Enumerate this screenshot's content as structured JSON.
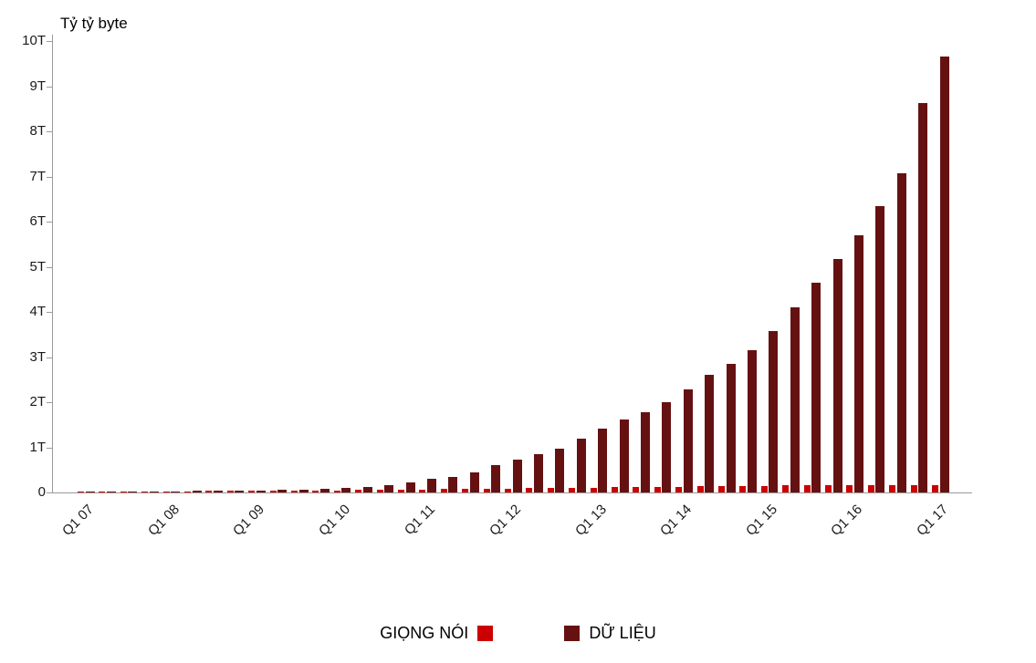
{
  "chart_data": {
    "type": "bar",
    "title": "Tỷ tỷ byte",
    "ylabel": "Tỷ tỷ byte",
    "ylim": [
      0,
      10
    ],
    "y_tick_labels": [
      "0",
      "1T",
      "2T",
      "3T",
      "4T",
      "5T",
      "6T",
      "7T",
      "8T",
      "9T",
      "10T"
    ],
    "tick_every": 4,
    "x_tick_labels": [
      "Q1 07",
      "Q1 08",
      "Q1 09",
      "Q1 10",
      "Q1 11",
      "Q1 12",
      "Q1 13",
      "Q1 14",
      "Q1 15",
      "Q1 16",
      "Q1 17"
    ],
    "categories": [
      "Q1 07",
      "Q2 07",
      "Q3 07",
      "Q4 07",
      "Q1 08",
      "Q2 08",
      "Q3 08",
      "Q4 08",
      "Q1 09",
      "Q2 09",
      "Q3 09",
      "Q4 09",
      "Q1 10",
      "Q2 10",
      "Q3 10",
      "Q4 10",
      "Q1 11",
      "Q2 11",
      "Q3 11",
      "Q4 11",
      "Q1 12",
      "Q2 12",
      "Q3 12",
      "Q4 12",
      "Q1 13",
      "Q2 13",
      "Q3 13",
      "Q4 13",
      "Q1 14",
      "Q2 14",
      "Q3 14",
      "Q4 14",
      "Q1 15",
      "Q2 15",
      "Q3 15",
      "Q4 15",
      "Q1 16",
      "Q2 16",
      "Q3 16",
      "Q4 16",
      "Q1 17"
    ],
    "series": [
      {
        "name": "GIỌNG NÓI",
        "color": "#cc0000",
        "values": [
          0.02,
          0.02,
          0.025,
          0.025,
          0.03,
          0.03,
          0.035,
          0.035,
          0.04,
          0.04,
          0.045,
          0.045,
          0.05,
          0.055,
          0.06,
          0.065,
          0.07,
          0.075,
          0.08,
          0.085,
          0.09,
          0.095,
          0.1,
          0.105,
          0.11,
          0.115,
          0.12,
          0.125,
          0.13,
          0.135,
          0.14,
          0.145,
          0.15,
          0.155,
          0.16,
          0.16,
          0.165,
          0.165,
          0.17,
          0.17,
          0.17
        ]
      },
      {
        "name": "DỮ LIỆU",
        "color": "#661111",
        "values": [
          0.01,
          0.015,
          0.02,
          0.025,
          0.03,
          0.035,
          0.04,
          0.045,
          0.05,
          0.055,
          0.065,
          0.08,
          0.1,
          0.13,
          0.17,
          0.22,
          0.3,
          0.35,
          0.45,
          0.6,
          0.72,
          0.85,
          0.97,
          1.2,
          1.42,
          1.62,
          1.78,
          2.0,
          2.28,
          2.6,
          2.85,
          3.15,
          3.58,
          4.1,
          4.65,
          5.18,
          5.7,
          6.35,
          7.07,
          8.63,
          9.65
        ]
      }
    ],
    "grid": false,
    "legend_position": "bottom"
  },
  "colors": {
    "axis": "#9a9a9a",
    "text": "#1a1a1a",
    "background": "#ffffff"
  }
}
